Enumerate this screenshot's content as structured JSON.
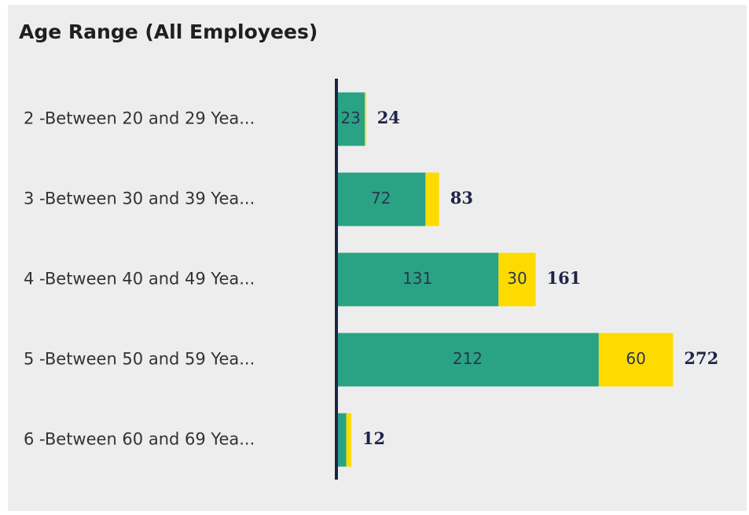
{
  "chart_data": {
    "type": "stacked-bar-horizontal",
    "title": "Age Range (All Employees)",
    "categories": [
      "2 -Between 20 and 29 Yea...",
      "3 -Between 30 and 39 Yea...",
      "4 -Between 40 and 49 Yea...",
      "5 -Between 50 and 59 Yea...",
      "6 -Between 60 and 69 Yea..."
    ],
    "series": [
      {
        "color": "#2aa384",
        "values": [
          23,
          72,
          131,
          212,
          8
        ],
        "value_labels": [
          "23",
          "72",
          "131",
          "212",
          null
        ]
      },
      {
        "color": "#fedb00",
        "values": [
          1,
          11,
          30,
          60,
          4
        ],
        "value_labels": [
          null,
          null,
          "30",
          "60",
          null
        ]
      }
    ],
    "totals": [
      24,
      83,
      161,
      272,
      12
    ],
    "xlim": [
      0,
      320
    ]
  }
}
